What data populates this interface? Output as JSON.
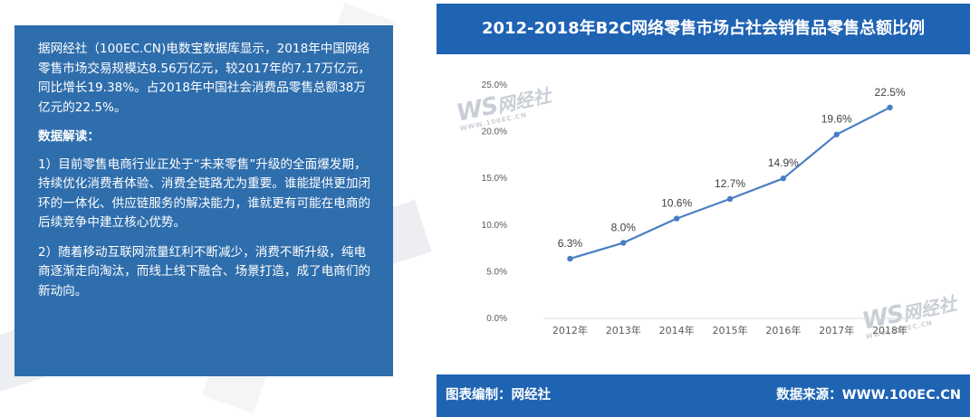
{
  "left_panel": {
    "intro": "据网经社（100EC.CN)电数宝数据库显示，2018年中国网络零售市场交易规模达8.56万亿元，较2017年的7.17万亿元，同比增长19.38%。占2018年中国社会消费品零售总额38万亿元的22.5%。",
    "heading": "数据解读：",
    "point1": "1）目前零售电商行业正处于“未来零售”升级的全面爆发期，持续优化消费者体验、消费全链路尤为重要。谁能提供更加闭环的一体化、供应链服务的解决能力，谁就更有可能在电商的后续竞争中建立核心优势。",
    "point2": "2）随着移动互联网流量红利不断减少，消费不断升级，纯电商逐渐走向淘汰，而线上线下融合、场景打造，成了电商们的新动向。"
  },
  "footer": {
    "left": "图表编制：网经社",
    "right": "数据来源：WWW.100EC.CN"
  },
  "watermark": {
    "logo": "WS",
    "name": "网经社",
    "url": "WWW.100EC.CN"
  },
  "colors": {
    "panel_blue": "#2f6ead",
    "header_blue": "#1f63b3",
    "line_blue": "#4a7ec4"
  },
  "chart_data": {
    "type": "line",
    "title": "2012-2018年B2C网络零售市场占社会销售品零售总额比例",
    "categories": [
      "2012年",
      "2013年",
      "2014年",
      "2015年",
      "2016年",
      "2017年",
      "2018年"
    ],
    "values": [
      6.3,
      8.0,
      10.6,
      12.7,
      14.9,
      19.6,
      22.5
    ],
    "data_labels": [
      "6.3%",
      "8.0%",
      "10.6%",
      "12.7%",
      "14.9%",
      "19.6%",
      "22.5%"
    ],
    "ylim": [
      0,
      25
    ],
    "yticks": [
      "0.0%",
      "5.0%",
      "10.0%",
      "15.0%",
      "20.0%",
      "25.0%"
    ],
    "grid": false,
    "legend": "none"
  }
}
